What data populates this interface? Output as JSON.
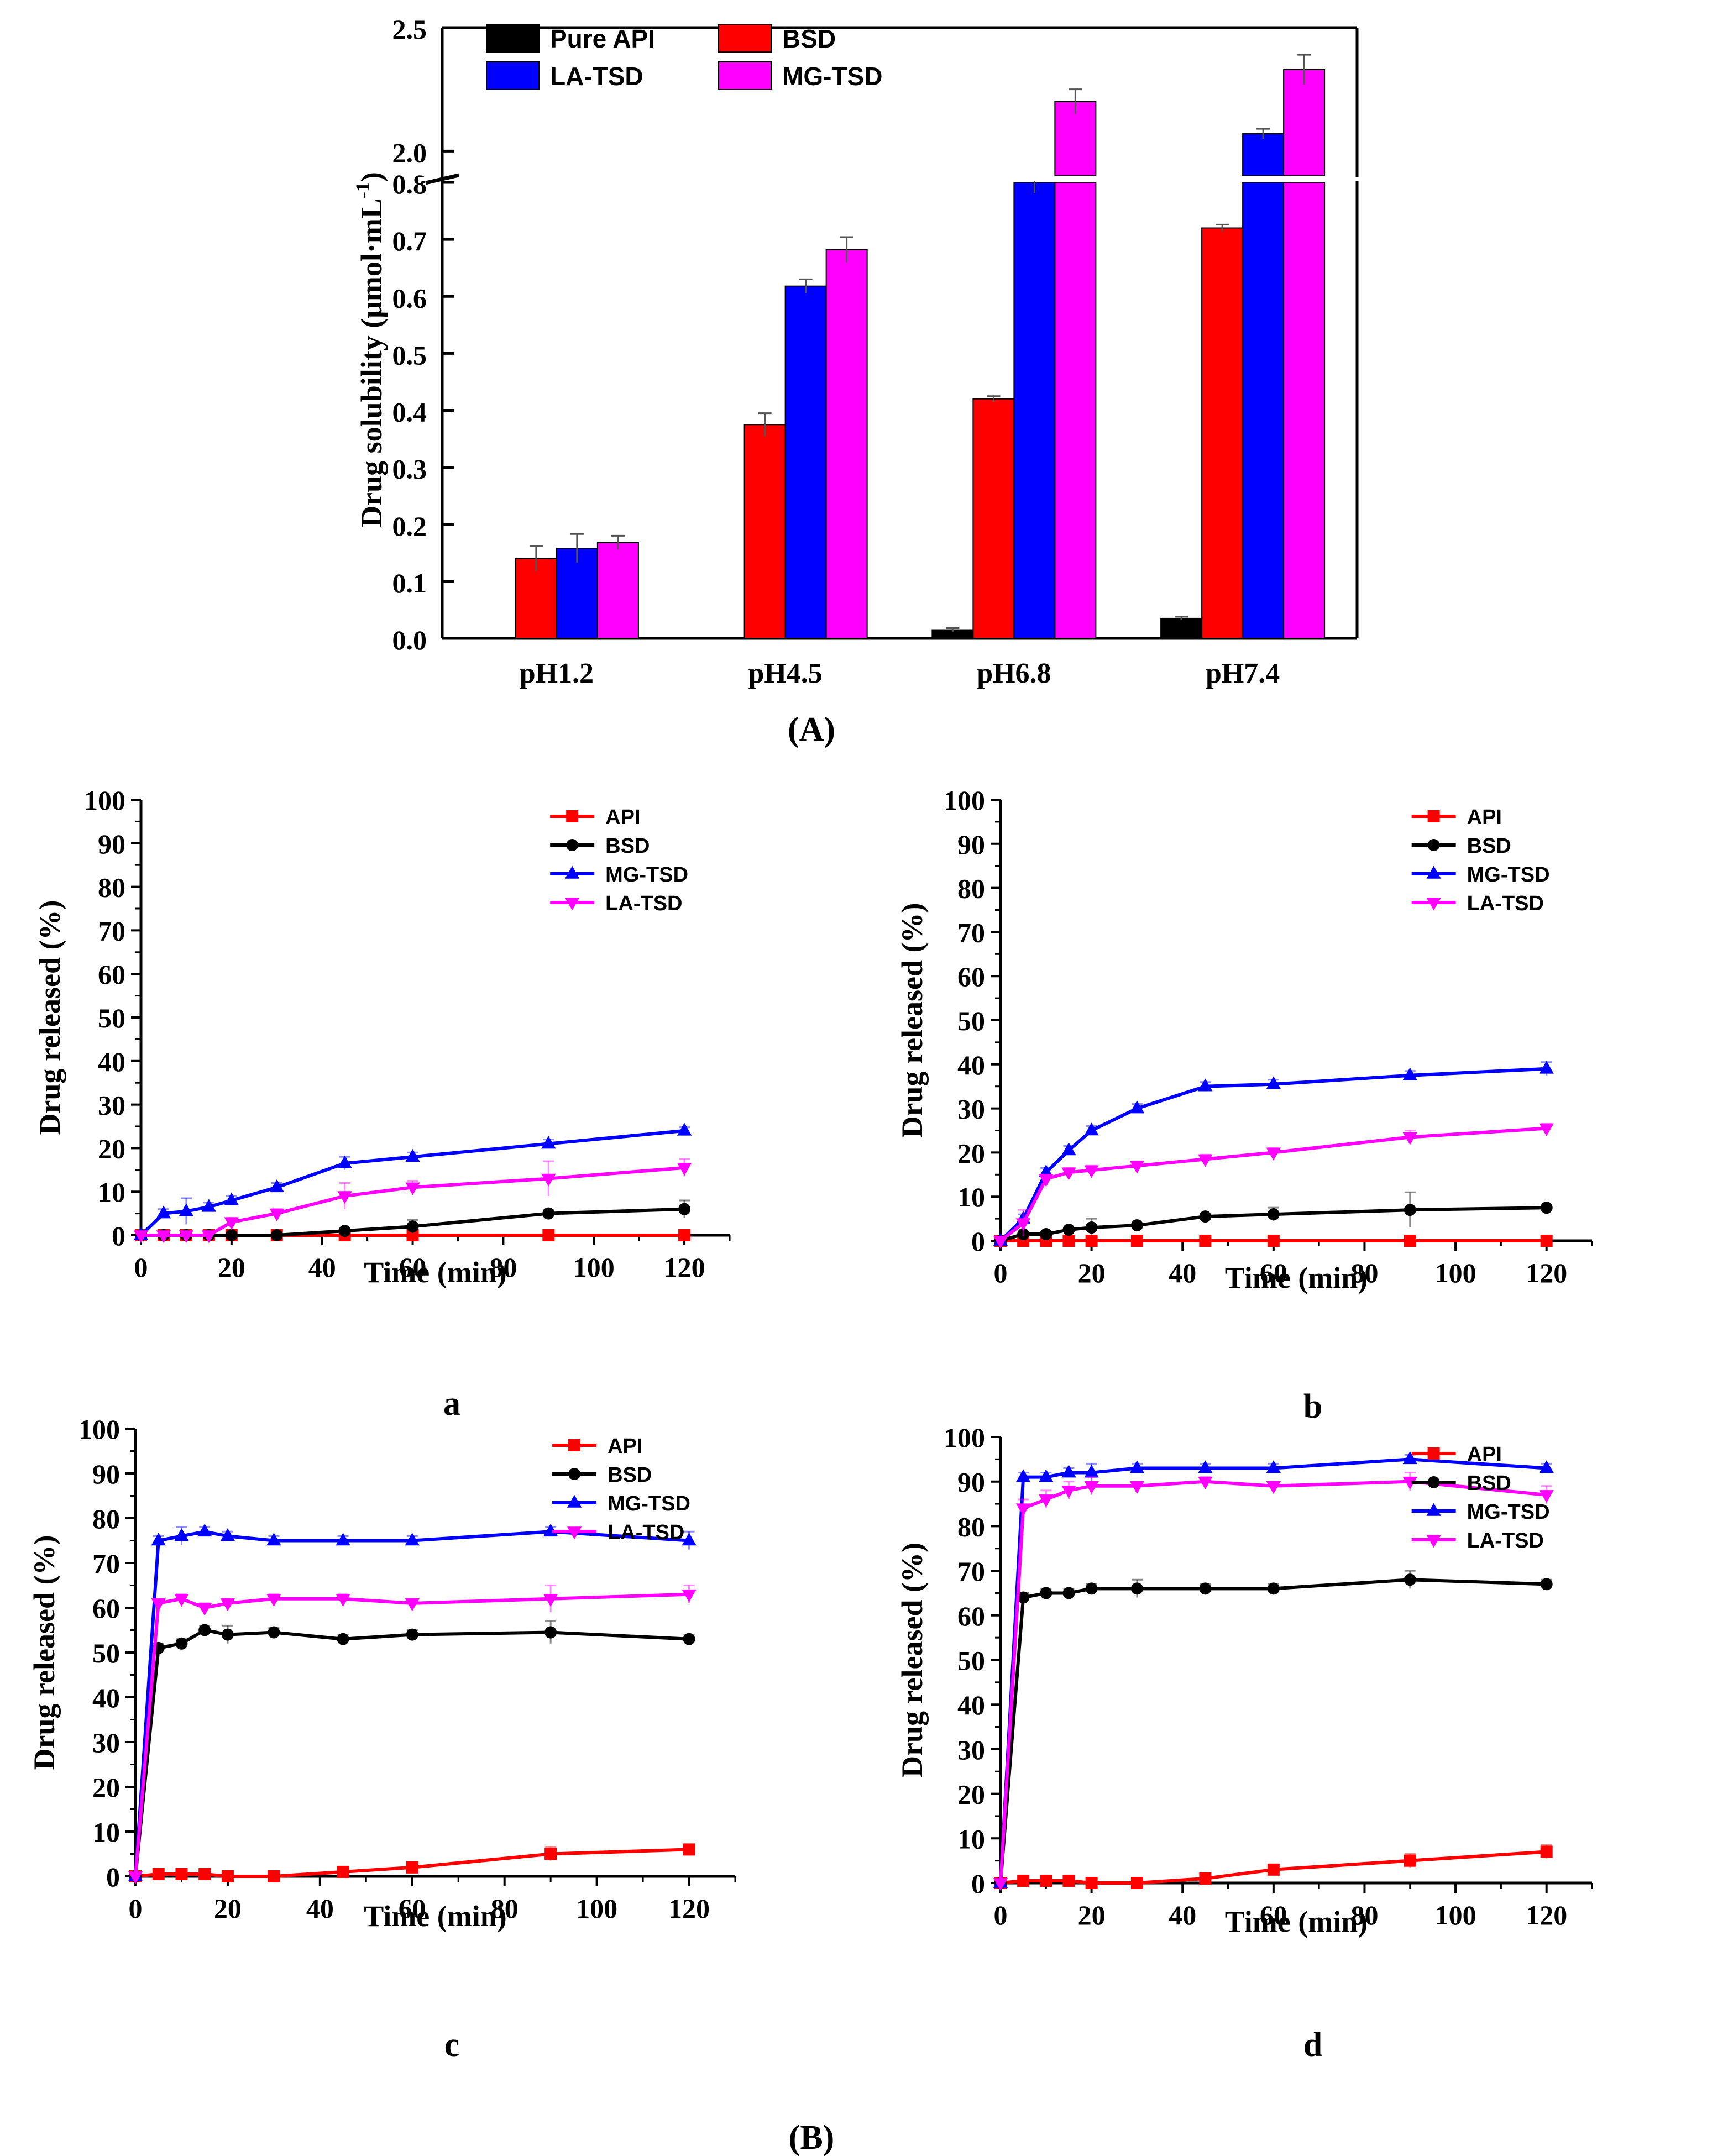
{
  "figure_labels": {
    "A": "(A)",
    "B": "(B)"
  },
  "colors": {
    "Pure API": "#000000",
    "API": "#ff0000",
    "BSD": "#ff0000",
    "LA-TSD": "#0000ff",
    "MG-TSD": "#ff00ff"
  },
  "chart_data": [
    {
      "id": "A",
      "type": "bar",
      "panel_label": "(A)",
      "ylabel": "Drug solubility (μmol·mL",
      "ylabel_sup": "-1",
      "ylabel_close": ")",
      "categories": [
        "pH1.2",
        "pH4.5",
        "pH6.8",
        "pH7.4"
      ],
      "yaxis_break": {
        "lower": [
          0.0,
          0.8
        ],
        "upper": [
          1.9,
          2.5
        ]
      },
      "lower_ticks": [
        "0.0",
        "0.1",
        "0.2",
        "0.3",
        "0.4",
        "0.5",
        "0.6",
        "0.7",
        "0.8"
      ],
      "upper_ticks": [
        "2.0",
        "2.5"
      ],
      "legend_position": "top",
      "series": [
        {
          "name": "Pure API",
          "color": "#000000",
          "values": [
            0.001,
            0.001,
            0.015,
            0.035
          ],
          "errors": [
            0,
            0,
            0.003,
            0.003
          ]
        },
        {
          "name": "BSD",
          "color": "#ff0000",
          "values": [
            0.14,
            0.375,
            0.42,
            0.72
          ],
          "errors": [
            0.022,
            0.02,
            0.005,
            0.006
          ]
        },
        {
          "name": "LA-TSD",
          "color": "#0000ff",
          "values": [
            0.158,
            0.618,
            1.86,
            2.07
          ],
          "errors": [
            0.025,
            0.012,
            0.03,
            0.02
          ]
        },
        {
          "name": "MG-TSD",
          "color": "#ff00ff",
          "values": [
            0.168,
            0.682,
            2.2,
            2.33
          ],
          "errors": [
            0.012,
            0.022,
            0.05,
            0.06
          ]
        }
      ]
    },
    {
      "id": "a",
      "type": "line",
      "panel_label": "a",
      "xlabel": "Time (min)",
      "ylabel": "Drug released (%)",
      "xlim": [
        0,
        130
      ],
      "ylim": [
        0,
        100
      ],
      "xticks": [
        0,
        20,
        40,
        60,
        80,
        100,
        120
      ],
      "yticks": [
        0,
        10,
        20,
        30,
        40,
        50,
        60,
        70,
        80,
        90,
        100
      ],
      "legend_position": "top-right",
      "x": [
        0,
        5,
        10,
        15,
        20,
        30,
        45,
        60,
        90,
        120
      ],
      "series": [
        {
          "name": "API",
          "color": "#ff0000",
          "marker": "square",
          "values": [
            0,
            0,
            0,
            0,
            0,
            0,
            0,
            0,
            0,
            0
          ],
          "errors": [
            0,
            0,
            0,
            0,
            0,
            0,
            0,
            0,
            0,
            0
          ]
        },
        {
          "name": "BSD",
          "color": "#000000",
          "marker": "circle",
          "values": [
            0,
            0,
            0,
            0,
            0,
            0,
            1,
            2,
            5,
            6
          ],
          "errors": [
            0,
            0,
            0,
            0,
            0,
            0,
            0.5,
            1.5,
            0.8,
            2
          ]
        },
        {
          "name": "MG-TSD",
          "color": "#0000ff",
          "marker": "triangle-up",
          "values": [
            0,
            5,
            5.5,
            6.5,
            8,
            11,
            16.5,
            18,
            21,
            24
          ],
          "errors": [
            0,
            1,
            3,
            1,
            1,
            1,
            1.5,
            1,
            1,
            0.8
          ]
        },
        {
          "name": "LA-TSD",
          "color": "#ff00ff",
          "marker": "triangle-down",
          "values": [
            0,
            0,
            0,
            0,
            3,
            5,
            9,
            11,
            13,
            15.5
          ],
          "errors": [
            0,
            0,
            0,
            0,
            1,
            1,
            3,
            1.5,
            4,
            2
          ]
        }
      ]
    },
    {
      "id": "b",
      "type": "line",
      "panel_label": "b",
      "xlabel": "Time (min)",
      "ylabel": "Drug released (%)",
      "xlim": [
        0,
        130
      ],
      "ylim": [
        0,
        100
      ],
      "xticks": [
        0,
        20,
        40,
        60,
        80,
        100,
        120
      ],
      "yticks": [
        0,
        10,
        20,
        30,
        40,
        50,
        60,
        70,
        80,
        90,
        100
      ],
      "legend_position": "top-right",
      "x": [
        0,
        5,
        10,
        15,
        20,
        30,
        45,
        60,
        90,
        120
      ],
      "series": [
        {
          "name": "API",
          "color": "#ff0000",
          "marker": "square",
          "values": [
            0,
            0,
            0,
            0,
            0,
            0,
            0,
            0,
            0,
            0
          ],
          "errors": [
            0,
            0,
            0,
            0,
            0,
            0,
            0,
            0,
            0,
            0
          ]
        },
        {
          "name": "BSD",
          "color": "#000000",
          "marker": "circle",
          "values": [
            0,
            1.5,
            1.5,
            2.5,
            3,
            3.5,
            5.5,
            6,
            7,
            7.5
          ],
          "errors": [
            0,
            0.5,
            0.5,
            0.5,
            2,
            0.5,
            0.5,
            1.5,
            4,
            0.5
          ]
        },
        {
          "name": "MG-TSD",
          "color": "#0000ff",
          "marker": "triangle-up",
          "values": [
            0,
            5,
            15.5,
            20.5,
            25,
            30,
            35,
            35.5,
            37.5,
            39
          ],
          "errors": [
            0,
            1,
            1,
            1,
            1,
            1,
            1,
            1,
            1,
            1.5
          ]
        },
        {
          "name": "LA-TSD",
          "color": "#ff00ff",
          "marker": "triangle-down",
          "values": [
            0,
            4,
            14,
            15.5,
            16,
            17,
            18.5,
            20,
            23.5,
            25.5
          ],
          "errors": [
            0,
            3,
            1,
            1,
            1,
            1,
            1,
            1,
            1.5,
            1
          ]
        }
      ]
    },
    {
      "id": "c",
      "type": "line",
      "panel_label": "c",
      "xlabel": "Time (min)",
      "ylabel": "Drug released (%)",
      "xlim": [
        0,
        130
      ],
      "ylim": [
        0,
        100
      ],
      "xticks": [
        0,
        20,
        40,
        60,
        80,
        100,
        120
      ],
      "yticks": [
        0,
        10,
        20,
        30,
        40,
        50,
        60,
        70,
        80,
        90,
        100
      ],
      "legend_position": "top-right",
      "x": [
        0,
        5,
        10,
        15,
        20,
        30,
        45,
        60,
        90,
        120
      ],
      "series": [
        {
          "name": "API",
          "color": "#ff0000",
          "marker": "square",
          "values": [
            0,
            0.5,
            0.5,
            0.5,
            0,
            0,
            1,
            2,
            5,
            6
          ],
          "errors": [
            0,
            0,
            0,
            0,
            0,
            0,
            0.5,
            0.5,
            1.5,
            1
          ]
        },
        {
          "name": "BSD",
          "color": "#000000",
          "marker": "circle",
          "values": [
            0,
            51,
            52,
            55,
            54,
            54.5,
            53,
            54,
            54.5,
            53
          ],
          "errors": [
            0,
            1,
            1,
            1,
            2,
            1,
            1,
            1,
            2.5,
            1
          ]
        },
        {
          "name": "MG-TSD",
          "color": "#0000ff",
          "marker": "triangle-up",
          "values": [
            0,
            75,
            76,
            77,
            76,
            75,
            75,
            75,
            77,
            75
          ],
          "errors": [
            0,
            1,
            2,
            1,
            1,
            1,
            1,
            1,
            1,
            2
          ]
        },
        {
          "name": "LA-TSD",
          "color": "#ff00ff",
          "marker": "triangle-down",
          "values": [
            0,
            61,
            62,
            60,
            61,
            62,
            62,
            61,
            62,
            63
          ],
          "errors": [
            0,
            1,
            1,
            1,
            1,
            1,
            1,
            1,
            3,
            2
          ]
        }
      ]
    },
    {
      "id": "d",
      "type": "line",
      "panel_label": "d",
      "xlabel": "Time (min)",
      "ylabel": "Drug released (%)",
      "xlim": [
        0,
        130
      ],
      "ylim": [
        0,
        100
      ],
      "xticks": [
        0,
        20,
        40,
        60,
        80,
        100,
        120
      ],
      "yticks": [
        0,
        10,
        20,
        30,
        40,
        50,
        60,
        70,
        80,
        90,
        100
      ],
      "legend_position": "top-right",
      "x": [
        0,
        5,
        10,
        15,
        20,
        30,
        45,
        60,
        90,
        120
      ],
      "series": [
        {
          "name": "API",
          "color": "#ff0000",
          "marker": "square",
          "values": [
            0,
            0.5,
            0.5,
            0.5,
            0,
            0,
            1,
            3,
            5,
            7
          ],
          "errors": [
            0,
            0,
            0,
            0,
            0,
            0,
            0.5,
            1,
            1.5,
            1.5
          ]
        },
        {
          "name": "BSD",
          "color": "#000000",
          "marker": "circle",
          "values": [
            0,
            64,
            65,
            65,
            66,
            66,
            66,
            66,
            68,
            67
          ],
          "errors": [
            0,
            1,
            1,
            1,
            1,
            2,
            1,
            1,
            2,
            1
          ]
        },
        {
          "name": "MG-TSD",
          "color": "#0000ff",
          "marker": "triangle-up",
          "values": [
            0,
            91,
            91,
            92,
            92,
            93,
            93,
            93,
            95,
            93
          ],
          "errors": [
            0,
            1,
            1,
            1,
            2,
            1,
            1,
            1,
            1,
            1
          ]
        },
        {
          "name": "LA-TSD",
          "color": "#ff00ff",
          "marker": "triangle-down",
          "values": [
            0,
            84,
            86,
            88,
            89,
            89,
            90,
            89,
            90,
            87
          ],
          "errors": [
            0,
            2,
            2,
            2,
            2,
            1,
            1,
            1,
            2,
            2
          ]
        }
      ]
    }
  ]
}
